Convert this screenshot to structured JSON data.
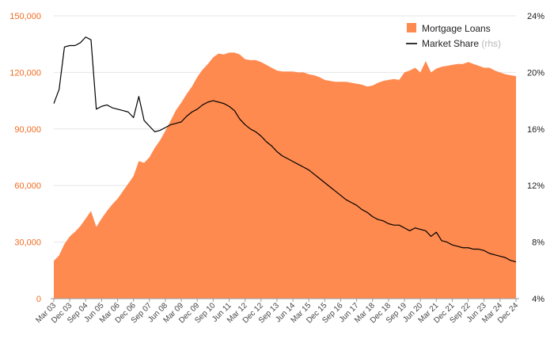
{
  "chart_data": {
    "type": "area",
    "title": "",
    "y_left": {
      "ticks": [
        0,
        30000,
        60000,
        90000,
        120000,
        150000
      ],
      "labels": [
        "0",
        "30,000",
        "60,000",
        "90,000",
        "120,000",
        "150,000"
      ],
      "ylim": [
        0,
        150000
      ]
    },
    "y_right": {
      "ticks": [
        4,
        8,
        12,
        16,
        20,
        24
      ],
      "labels": [
        "4%",
        "8%",
        "12%",
        "16%",
        "20%",
        "24%"
      ],
      "ylim": [
        4,
        24
      ]
    },
    "x_ticks": [
      "Mar 03",
      "Dec 03",
      "Sep 04",
      "Jun 05",
      "Mar 06",
      "Dec 06",
      "Sep 07",
      "Jun 08",
      "Mar 09",
      "Dec 09",
      "Sep 10",
      "Jun 11",
      "Mar 12",
      "Dec 12",
      "Sep 13",
      "Jun 14",
      "Mar 15",
      "Dec 15",
      "Sep 16",
      "Jun 17",
      "Mar 18",
      "Dec 18",
      "Sep 19",
      "Jun 20",
      "Mar 21",
      "Dec 21",
      "Sep 22",
      "Jun 23",
      "Mar 24",
      "Dec 24"
    ],
    "quarters_count": 88,
    "series": [
      {
        "name": "Mortgage Loans",
        "axis": "left",
        "style": "area",
        "color": "#ff8a50",
        "points": [
          [
            0,
            20000
          ],
          [
            1,
            23000
          ],
          [
            2,
            29000
          ],
          [
            3,
            33000
          ],
          [
            4,
            35500
          ],
          [
            5,
            38500
          ],
          [
            6,
            42500
          ],
          [
            7,
            46500
          ],
          [
            8,
            38000
          ],
          [
            9,
            42500
          ],
          [
            10,
            46500
          ],
          [
            11,
            50000
          ],
          [
            12,
            53000
          ],
          [
            13,
            57000
          ],
          [
            14,
            61000
          ],
          [
            15,
            65000
          ],
          [
            16,
            73000
          ],
          [
            17,
            72000
          ],
          [
            18,
            75000
          ],
          [
            19,
            80000
          ],
          [
            20,
            84000
          ],
          [
            21,
            89000
          ],
          [
            22,
            94500
          ],
          [
            23,
            100000
          ],
          [
            24,
            104000
          ],
          [
            25,
            108500
          ],
          [
            26,
            112500
          ],
          [
            27,
            117500
          ],
          [
            28,
            121500
          ],
          [
            29,
            124500
          ],
          [
            30,
            128000
          ],
          [
            31,
            130000
          ],
          [
            32,
            129500
          ],
          [
            33,
            130500
          ],
          [
            34,
            130500
          ],
          [
            35,
            129500
          ],
          [
            36,
            127000
          ],
          [
            37,
            126500
          ],
          [
            38,
            126500
          ],
          [
            39,
            125500
          ],
          [
            40,
            124000
          ],
          [
            41,
            122500
          ],
          [
            42,
            121000
          ],
          [
            43,
            120500
          ],
          [
            44,
            120500
          ],
          [
            45,
            120500
          ],
          [
            46,
            120000
          ],
          [
            47,
            120000
          ],
          [
            48,
            119000
          ],
          [
            49,
            118500
          ],
          [
            50,
            117500
          ],
          [
            51,
            116000
          ],
          [
            52,
            115500
          ],
          [
            53,
            115000
          ],
          [
            54,
            115000
          ],
          [
            55,
            115000
          ],
          [
            56,
            114500
          ],
          [
            57,
            114000
          ],
          [
            58,
            113500
          ],
          [
            59,
            112500
          ],
          [
            60,
            113000
          ],
          [
            61,
            114500
          ],
          [
            62,
            115500
          ],
          [
            63,
            116000
          ],
          [
            64,
            116500
          ],
          [
            65,
            116000
          ],
          [
            66,
            120000
          ],
          [
            67,
            121000
          ],
          [
            68,
            122500
          ],
          [
            69,
            120000
          ],
          [
            70,
            126000
          ],
          [
            71,
            120000
          ],
          [
            72,
            122000
          ],
          [
            73,
            123000
          ],
          [
            74,
            123500
          ],
          [
            75,
            124000
          ],
          [
            76,
            124500
          ],
          [
            77,
            124500
          ],
          [
            78,
            125500
          ],
          [
            79,
            124500
          ],
          [
            80,
            123500
          ],
          [
            81,
            122500
          ],
          [
            82,
            122500
          ],
          [
            83,
            121000
          ],
          [
            84,
            120000
          ],
          [
            85,
            119000
          ],
          [
            86,
            118500
          ],
          [
            87,
            118000
          ]
        ]
      },
      {
        "name": "Market Share",
        "note": "(rhs)",
        "axis": "right",
        "style": "line",
        "color": "#000000",
        "points": [
          [
            0,
            17.8
          ],
          [
            1,
            18.8
          ],
          [
            2,
            21.8
          ],
          [
            3,
            21.9
          ],
          [
            4,
            21.9
          ],
          [
            5,
            22.1
          ],
          [
            6,
            22.5
          ],
          [
            7,
            22.3
          ],
          [
            8,
            17.4
          ],
          [
            9,
            17.6
          ],
          [
            10,
            17.7
          ],
          [
            11,
            17.5
          ],
          [
            12,
            17.4
          ],
          [
            13,
            17.3
          ],
          [
            14,
            17.2
          ],
          [
            15,
            16.8
          ],
          [
            16,
            18.3
          ],
          [
            17,
            16.6
          ],
          [
            18,
            16.2
          ],
          [
            19,
            15.8
          ],
          [
            20,
            15.9
          ],
          [
            21,
            16.1
          ],
          [
            22,
            16.3
          ],
          [
            23,
            16.4
          ],
          [
            24,
            16.5
          ],
          [
            25,
            16.9
          ],
          [
            26,
            17.2
          ],
          [
            27,
            17.4
          ],
          [
            28,
            17.7
          ],
          [
            29,
            17.9
          ],
          [
            30,
            18.0
          ],
          [
            31,
            17.9
          ],
          [
            32,
            17.8
          ],
          [
            33,
            17.6
          ],
          [
            34,
            17.3
          ],
          [
            35,
            16.7
          ],
          [
            36,
            16.3
          ],
          [
            37,
            16.0
          ],
          [
            38,
            15.8
          ],
          [
            39,
            15.5
          ],
          [
            40,
            15.1
          ],
          [
            41,
            14.8
          ],
          [
            42,
            14.4
          ],
          [
            43,
            14.1
          ],
          [
            44,
            13.9
          ],
          [
            45,
            13.7
          ],
          [
            46,
            13.5
          ],
          [
            47,
            13.3
          ],
          [
            48,
            13.1
          ],
          [
            49,
            12.8
          ],
          [
            50,
            12.5
          ],
          [
            51,
            12.2
          ],
          [
            52,
            11.9
          ],
          [
            53,
            11.6
          ],
          [
            54,
            11.3
          ],
          [
            55,
            11.0
          ],
          [
            56,
            10.8
          ],
          [
            57,
            10.6
          ],
          [
            58,
            10.3
          ],
          [
            59,
            10.1
          ],
          [
            60,
            9.8
          ],
          [
            61,
            9.6
          ],
          [
            62,
            9.5
          ],
          [
            63,
            9.3
          ],
          [
            64,
            9.2
          ],
          [
            65,
            9.2
          ],
          [
            66,
            9.0
          ],
          [
            67,
            8.8
          ],
          [
            68,
            9.0
          ],
          [
            69,
            8.9
          ],
          [
            70,
            8.8
          ],
          [
            71,
            8.4
          ],
          [
            72,
            8.7
          ],
          [
            73,
            8.1
          ],
          [
            74,
            8.0
          ],
          [
            75,
            7.8
          ],
          [
            76,
            7.7
          ],
          [
            77,
            7.6
          ],
          [
            78,
            7.6
          ],
          [
            79,
            7.5
          ],
          [
            80,
            7.5
          ],
          [
            81,
            7.4
          ],
          [
            82,
            7.2
          ],
          [
            83,
            7.1
          ],
          [
            84,
            7.0
          ],
          [
            85,
            6.9
          ],
          [
            86,
            6.7
          ],
          [
            87,
            6.6
          ]
        ]
      }
    ],
    "legend_position": "top-right",
    "grid": true
  }
}
